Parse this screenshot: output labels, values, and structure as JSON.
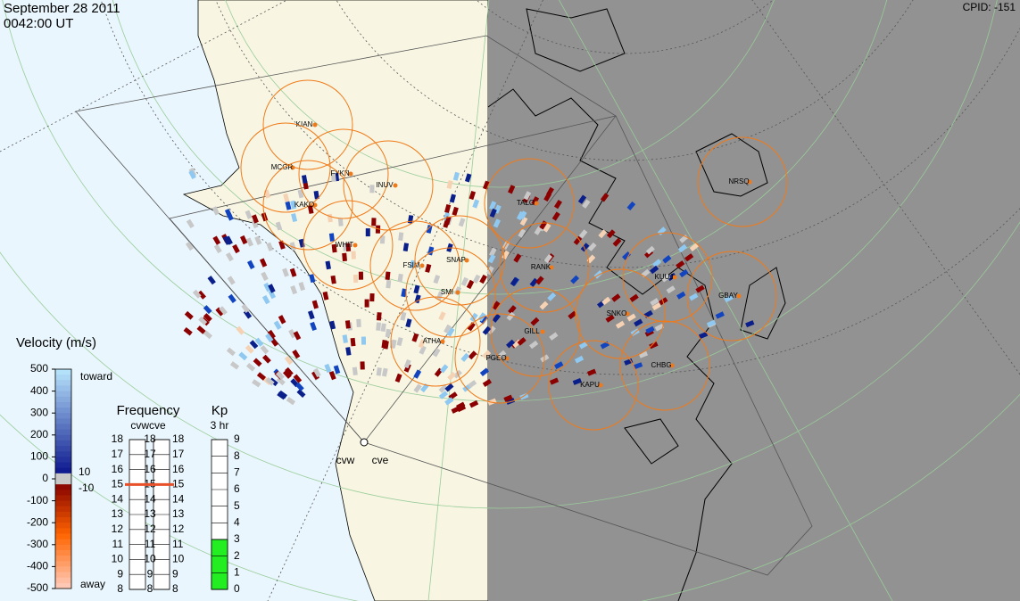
{
  "header": {
    "date": "September 28 2011",
    "time": "0042:00 UT",
    "cpid": "CPID:  -151"
  },
  "stations": [
    "KIAN",
    "MCGR",
    "FYKN",
    "INUV",
    "KAKO",
    "WHIT",
    "FSIM",
    "SNAP",
    "SMI",
    "ATHA",
    "PGEO",
    "TALO",
    "RANK",
    "GILL",
    "SNKO",
    "KUUJ",
    "GBAY",
    "CHBG",
    "KAPU",
    "NRSQ"
  ],
  "radars": [
    "cvw",
    "cve"
  ],
  "velocity_legend": {
    "title": "Velocity (m/s)",
    "ticks": [
      500,
      400,
      300,
      200,
      100,
      0,
      -100,
      -200,
      -300,
      -400,
      -500
    ],
    "toward": "toward",
    "away": "away",
    "threshold": [
      10,
      -10
    ]
  },
  "frequency": {
    "title": "Frequency",
    "subtitle": "cvwcve",
    "ticks": [
      8,
      9,
      10,
      11,
      12,
      13,
      14,
      15,
      16,
      17,
      18
    ],
    "cvw": 15,
    "cve": 15
  },
  "kp": {
    "title": "Kp",
    "subtitle": "3 hr",
    "ticks": [
      0,
      1,
      2,
      3,
      4,
      5,
      6,
      7,
      8,
      9
    ],
    "value": 3
  }
}
